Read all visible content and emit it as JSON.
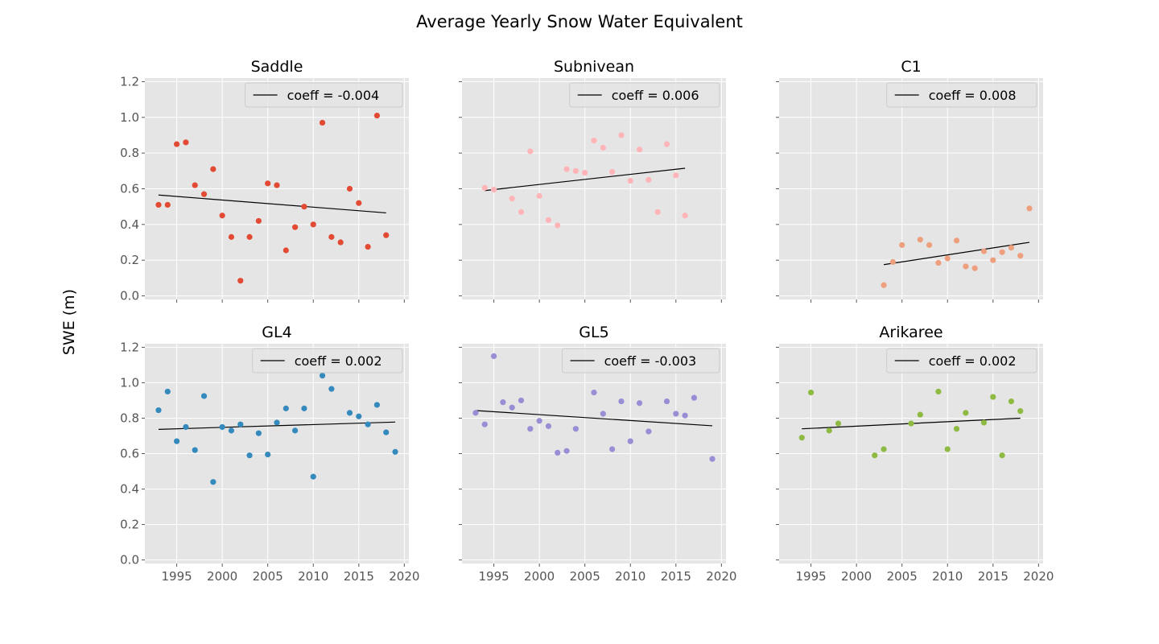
{
  "figure": {
    "title": "Average Yearly Snow Water Equivalent",
    "ylabel": "SWE (m)"
  },
  "chart_data": [
    {
      "type": "scatter",
      "title": "Saddle",
      "color": "#E24A33",
      "xlim": [
        1991.5,
        2020.5
      ],
      "ylim": [
        -0.02,
        1.22
      ],
      "xticks": [
        1995,
        2000,
        2005,
        2010,
        2015,
        2020
      ],
      "yticks": [
        0.0,
        0.2,
        0.4,
        0.6,
        0.8,
        1.0,
        1.2
      ],
      "show_xtick_labels": false,
      "show_ytick_labels": true,
      "legend_label": "coeff = -0.004",
      "legend_position": "upper right",
      "trend": {
        "x": [
          1993,
          2018
        ],
        "y": [
          0.565,
          0.465
        ]
      },
      "points": [
        [
          1993,
          0.51
        ],
        [
          1994,
          0.51
        ],
        [
          1995,
          0.85
        ],
        [
          1996,
          0.86
        ],
        [
          1997,
          0.62
        ],
        [
          1998,
          0.57
        ],
        [
          1999,
          0.71
        ],
        [
          2000,
          0.45
        ],
        [
          2001,
          0.33
        ],
        [
          2002,
          0.085
        ],
        [
          2003,
          0.33
        ],
        [
          2004,
          0.42
        ],
        [
          2005,
          0.63
        ],
        [
          2006,
          0.62
        ],
        [
          2007,
          0.255
        ],
        [
          2008,
          0.385
        ],
        [
          2009,
          0.5
        ],
        [
          2010,
          0.4
        ],
        [
          2011,
          0.97
        ],
        [
          2012,
          0.33
        ],
        [
          2013,
          0.3
        ],
        [
          2014,
          0.6
        ],
        [
          2015,
          0.52
        ],
        [
          2016,
          0.275
        ],
        [
          2017,
          1.01
        ],
        [
          2018,
          0.34
        ]
      ]
    },
    {
      "type": "scatter",
      "title": "Subnivean",
      "color": "#FFB5B8",
      "xlim": [
        1991.5,
        2020.5
      ],
      "ylim": [
        -0.02,
        1.22
      ],
      "xticks": [
        1995,
        2000,
        2005,
        2010,
        2015,
        2020
      ],
      "yticks": [
        0.0,
        0.2,
        0.4,
        0.6,
        0.8,
        1.0,
        1.2
      ],
      "show_xtick_labels": false,
      "show_ytick_labels": false,
      "legend_label": "coeff = 0.006",
      "legend_position": "upper right",
      "trend": {
        "x": [
          1994,
          2016
        ],
        "y": [
          0.59,
          0.715
        ]
      },
      "points": [
        [
          1994,
          0.605
        ],
        [
          1995,
          0.595
        ],
        [
          1997,
          0.545
        ],
        [
          1998,
          0.47
        ],
        [
          1999,
          0.81
        ],
        [
          2000,
          0.56
        ],
        [
          2001,
          0.425
        ],
        [
          2002,
          0.395
        ],
        [
          2003,
          0.71
        ],
        [
          2004,
          0.7
        ],
        [
          2005,
          0.69
        ],
        [
          2006,
          0.87
        ],
        [
          2007,
          0.83
        ],
        [
          2008,
          0.695
        ],
        [
          2009,
          0.9
        ],
        [
          2010,
          0.645
        ],
        [
          2011,
          0.82
        ],
        [
          2012,
          0.65
        ],
        [
          2013,
          0.47
        ],
        [
          2014,
          0.85
        ],
        [
          2015,
          0.675
        ],
        [
          2016,
          0.45
        ]
      ]
    },
    {
      "type": "scatter",
      "title": "C1",
      "color": "#EE9F7D",
      "xlim": [
        1991.5,
        2020.5
      ],
      "ylim": [
        -0.02,
        1.22
      ],
      "xticks": [
        1995,
        2000,
        2005,
        2010,
        2015,
        2020
      ],
      "yticks": [
        0.0,
        0.2,
        0.4,
        0.6,
        0.8,
        1.0,
        1.2
      ],
      "show_xtick_labels": false,
      "show_ytick_labels": false,
      "legend_label": "coeff = 0.008",
      "legend_position": "upper right",
      "trend": {
        "x": [
          2003,
          2019
        ],
        "y": [
          0.175,
          0.3
        ]
      },
      "points": [
        [
          2003,
          0.06
        ],
        [
          2004,
          0.19
        ],
        [
          2005,
          0.285
        ],
        [
          2007,
          0.315
        ],
        [
          2008,
          0.285
        ],
        [
          2009,
          0.185
        ],
        [
          2010,
          0.21
        ],
        [
          2011,
          0.31
        ],
        [
          2012,
          0.165
        ],
        [
          2013,
          0.155
        ],
        [
          2014,
          0.25
        ],
        [
          2015,
          0.2
        ],
        [
          2016,
          0.245
        ],
        [
          2017,
          0.27
        ],
        [
          2018,
          0.225
        ],
        [
          2019,
          0.49
        ]
      ]
    },
    {
      "type": "scatter",
      "title": "GL4",
      "color": "#348ABD",
      "xlim": [
        1991.5,
        2020.5
      ],
      "ylim": [
        -0.02,
        1.22
      ],
      "xticks": [
        1995,
        2000,
        2005,
        2010,
        2015,
        2020
      ],
      "yticks": [
        0.0,
        0.2,
        0.4,
        0.6,
        0.8,
        1.0,
        1.2
      ],
      "show_xtick_labels": true,
      "show_ytick_labels": true,
      "legend_label": "coeff = 0.002",
      "legend_position": "upper right",
      "trend": {
        "x": [
          1993,
          2019
        ],
        "y": [
          0.737,
          0.778
        ]
      },
      "points": [
        [
          1993,
          0.845
        ],
        [
          1994,
          0.95
        ],
        [
          1995,
          0.67
        ],
        [
          1996,
          0.75
        ],
        [
          1997,
          0.62
        ],
        [
          1998,
          0.925
        ],
        [
          1999,
          0.44
        ],
        [
          2000,
          0.75
        ],
        [
          2001,
          0.73
        ],
        [
          2002,
          0.765
        ],
        [
          2003,
          0.59
        ],
        [
          2004,
          0.715
        ],
        [
          2005,
          0.595
        ],
        [
          2006,
          0.775
        ],
        [
          2007,
          0.855
        ],
        [
          2008,
          0.73
        ],
        [
          2009,
          0.855
        ],
        [
          2010,
          0.47
        ],
        [
          2011,
          1.04
        ],
        [
          2012,
          0.965
        ],
        [
          2014,
          0.83
        ],
        [
          2015,
          0.81
        ],
        [
          2016,
          0.765
        ],
        [
          2017,
          0.875
        ],
        [
          2018,
          0.72
        ],
        [
          2019,
          0.61
        ]
      ]
    },
    {
      "type": "scatter",
      "title": "GL5",
      "color": "#988ED5",
      "xlim": [
        1991.5,
        2020.5
      ],
      "ylim": [
        -0.02,
        1.22
      ],
      "xticks": [
        1995,
        2000,
        2005,
        2010,
        2015,
        2020
      ],
      "yticks": [
        0.0,
        0.2,
        0.4,
        0.6,
        0.8,
        1.0,
        1.2
      ],
      "show_xtick_labels": true,
      "show_ytick_labels": false,
      "legend_label": "coeff = -0.003",
      "legend_position": "upper right",
      "trend": {
        "x": [
          1993,
          2019
        ],
        "y": [
          0.843,
          0.757
        ]
      },
      "points": [
        [
          1993,
          0.83
        ],
        [
          1994,
          0.765
        ],
        [
          1995,
          1.15
        ],
        [
          1996,
          0.89
        ],
        [
          1997,
          0.86
        ],
        [
          1998,
          0.9
        ],
        [
          1999,
          0.74
        ],
        [
          2000,
          0.785
        ],
        [
          2001,
          0.755
        ],
        [
          2002,
          0.605
        ],
        [
          2003,
          0.615
        ],
        [
          2004,
          0.74
        ],
        [
          2006,
          0.945
        ],
        [
          2007,
          0.825
        ],
        [
          2008,
          0.625
        ],
        [
          2009,
          0.895
        ],
        [
          2010,
          0.67
        ],
        [
          2011,
          0.885
        ],
        [
          2012,
          0.725
        ],
        [
          2014,
          0.895
        ],
        [
          2015,
          0.825
        ],
        [
          2016,
          0.815
        ],
        [
          2017,
          0.915
        ],
        [
          2019,
          0.57
        ]
      ]
    },
    {
      "type": "scatter",
      "title": "Arikaree",
      "color": "#8EBA42",
      "xlim": [
        1991.5,
        2020.5
      ],
      "ylim": [
        -0.02,
        1.22
      ],
      "xticks": [
        1995,
        2000,
        2005,
        2010,
        2015,
        2020
      ],
      "yticks": [
        0.0,
        0.2,
        0.4,
        0.6,
        0.8,
        1.0,
        1.2
      ],
      "show_xtick_labels": true,
      "show_ytick_labels": false,
      "legend_label": "coeff = 0.002",
      "legend_position": "upper right",
      "trend": {
        "x": [
          1994,
          2018
        ],
        "y": [
          0.74,
          0.8
        ]
      },
      "points": [
        [
          1994,
          0.69
        ],
        [
          1995,
          0.945
        ],
        [
          1997,
          0.73
        ],
        [
          1998,
          0.77
        ],
        [
          2002,
          0.59
        ],
        [
          2003,
          0.625
        ],
        [
          2006,
          0.77
        ],
        [
          2007,
          0.82
        ],
        [
          2009,
          0.95
        ],
        [
          2010,
          0.625
        ],
        [
          2011,
          0.74
        ],
        [
          2012,
          0.83
        ],
        [
          2014,
          0.775
        ],
        [
          2015,
          0.92
        ],
        [
          2016,
          0.59
        ],
        [
          2017,
          0.895
        ],
        [
          2018,
          0.84
        ]
      ]
    }
  ]
}
